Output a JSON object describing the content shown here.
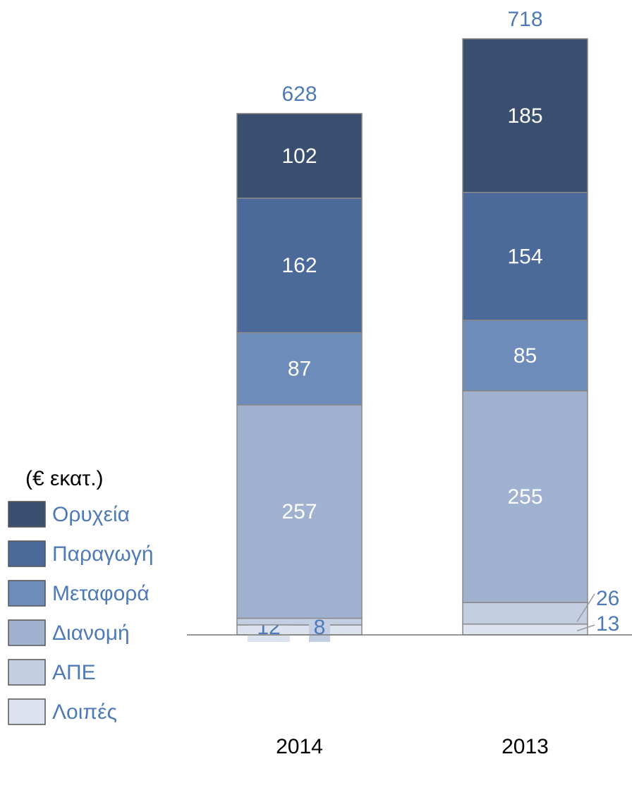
{
  "chart_data": {
    "type": "stacked_bar",
    "unit_label": "(€ εκατ.)",
    "categories": [
      "2014",
      "2013"
    ],
    "series": [
      {
        "name": "Λοιπές",
        "color": "#dce3ee",
        "values": [
          12,
          13
        ]
      },
      {
        "name": "ΑΠΕ",
        "color": "#c3cee2",
        "values": [
          8,
          26
        ]
      },
      {
        "name": "Διανομή",
        "color": "#a0b2d0",
        "values": [
          257,
          255
        ]
      },
      {
        "name": "Μεταφορά",
        "color": "#6e8cba",
        "values": [
          87,
          85
        ]
      },
      {
        "name": "Παραγωγή",
        "color": "#4b6a9a",
        "values": [
          162,
          154
        ]
      },
      {
        "name": "Ορυχεία",
        "color": "#3a4f6f",
        "values": [
          102,
          185
        ]
      }
    ],
    "totals": [
      628,
      718
    ]
  }
}
